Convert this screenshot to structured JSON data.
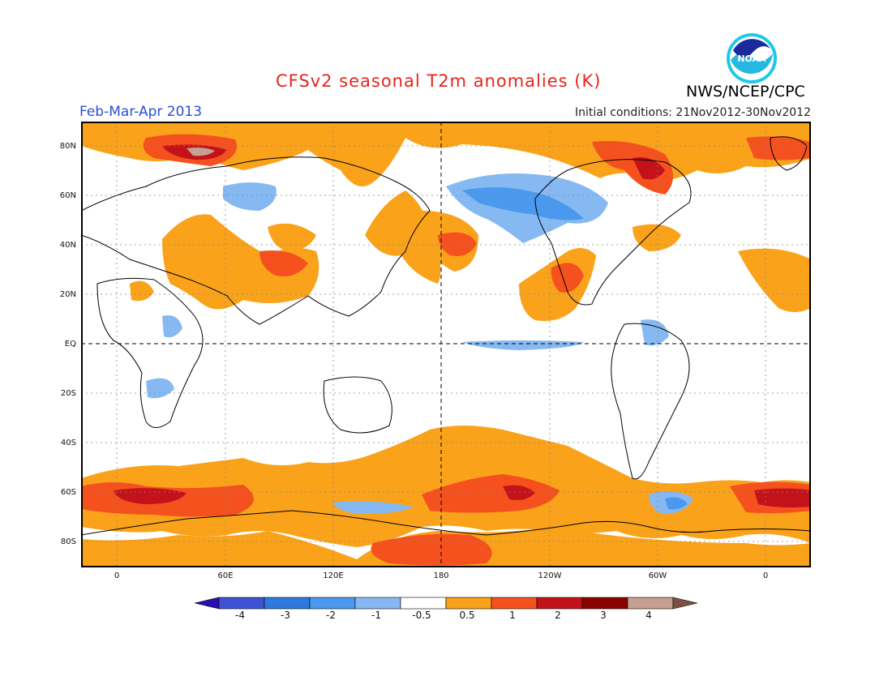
{
  "header": {
    "title": "CFSv2 seasonal T2m anomalies (K)",
    "agency": "NWS/NCEP/CPC",
    "logo_text": "NOAA",
    "period": "Feb-Mar-Apr 2013",
    "initial_conditions": "Initial conditions: 21Nov2012-30Nov2012"
  },
  "map": {
    "lat_labels": [
      "80N",
      "60N",
      "40N",
      "20N",
      "EQ",
      "20S",
      "40S",
      "60S",
      "80S"
    ],
    "lon_labels": [
      "0",
      "60E",
      "120E",
      "180",
      "120W",
      "60W",
      "0"
    ]
  },
  "colorbar": {
    "labels": [
      "-4",
      "-3",
      "-2",
      "-1",
      "-0.5",
      "0.5",
      "1",
      "2",
      "3",
      "4"
    ],
    "colors": [
      "#2a0fb0",
      "#3d52d6",
      "#2f78dd",
      "#4a99ee",
      "#86b9f2",
      "#ffffff",
      "#f9a21a",
      "#f4511e",
      "#c4121a",
      "#8b0000",
      "#c6a090",
      "#7b5043"
    ]
  }
}
